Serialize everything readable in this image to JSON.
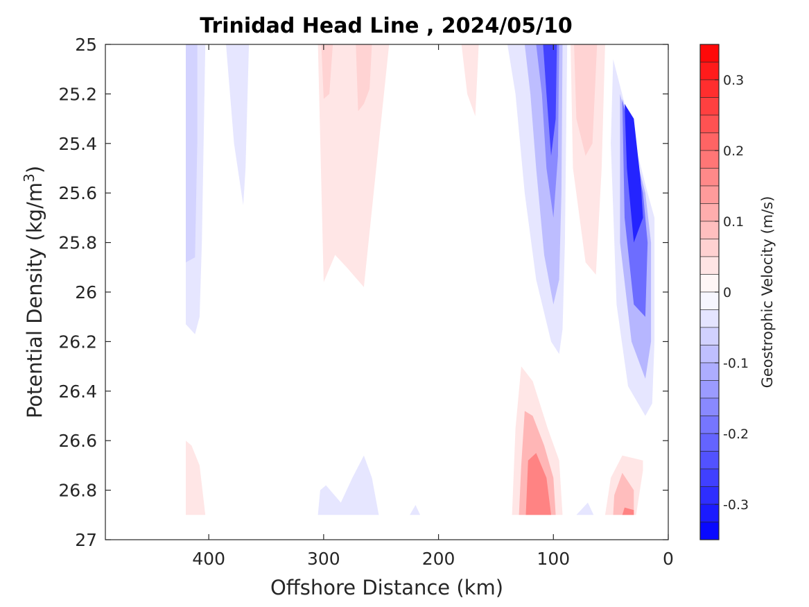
{
  "chart_data": {
    "type": "contour",
    "title": "Trinidad Head Line , 2024/05/10",
    "xlabel": "Offshore Distance (km)",
    "ylabel_main": "Potential Density (kg/m",
    "ylabel_sup": "3",
    "ylabel_close": ")",
    "x_reversed": true,
    "xlim": [
      490,
      0
    ],
    "ylim": [
      25,
      27
    ],
    "y_reversed": true,
    "x_ticks": [
      400,
      300,
      200,
      100,
      0
    ],
    "x_tick_labels": [
      "400",
      "300",
      "200",
      "100",
      "0"
    ],
    "y_ticks": [
      25,
      25.2,
      25.4,
      25.6,
      25.8,
      26,
      26.2,
      26.4,
      26.6,
      26.8,
      27
    ],
    "y_tick_labels": [
      "25",
      "25.2",
      "25.4",
      "25.6",
      "25.8",
      "26",
      "26.2",
      "26.4",
      "26.6",
      "26.8",
      "27"
    ],
    "colorbar": {
      "label": "Geostrophic Velocity (m/s)",
      "clim": [
        -0.35,
        0.35
      ],
      "levels_step": 0.025,
      "ticks": [
        0.3,
        0.2,
        0.1,
        0,
        -0.1,
        -0.2,
        -0.3
      ],
      "tick_labels": [
        "0.3",
        "0.2",
        "0.1",
        "0",
        "-0.1",
        "-0.2",
        "-0.3"
      ],
      "color_positive": "#ff0000",
      "color_negative": "#0000ff",
      "color_zero": "#ffffff"
    },
    "regions": [
      {
        "name": "offshore-negative-band-420km",
        "value": -0.035,
        "points": [
          [
            420,
            25
          ],
          [
            403,
            25
          ],
          [
            406,
            25.8
          ],
          [
            408,
            26.1
          ],
          [
            412,
            26.17
          ],
          [
            420,
            26.13
          ]
        ]
      },
      {
        "name": "offshore-negative-core-420km",
        "value": -0.06,
        "points": [
          [
            420,
            25
          ],
          [
            410,
            25
          ],
          [
            410,
            25.4
          ],
          [
            412,
            25.86
          ],
          [
            420,
            25.88
          ]
        ]
      },
      {
        "name": "offshore-negative-streak-375km",
        "value": -0.035,
        "points": [
          [
            385,
            25
          ],
          [
            365,
            25
          ],
          [
            368,
            25.5
          ],
          [
            370,
            25.65
          ],
          [
            378,
            25.4
          ]
        ]
      },
      {
        "name": "negative-band-285km",
        "value": -0.035,
        "points": [
          [
            305,
            26.9
          ],
          [
            252,
            26.9
          ],
          [
            258,
            26.75
          ],
          [
            265,
            26.66
          ],
          [
            275,
            26.75
          ],
          [
            285,
            26.85
          ],
          [
            298,
            26.78
          ],
          [
            303,
            26.8
          ]
        ]
      },
      {
        "name": "negative-speck-220km",
        "value": -0.035,
        "points": [
          [
            225,
            26.9
          ],
          [
            216,
            26.9
          ],
          [
            220,
            26.86
          ]
        ]
      },
      {
        "name": "positive-band-280km",
        "value": 0.035,
        "points": [
          [
            305,
            25
          ],
          [
            243,
            25
          ],
          [
            252,
            25.4
          ],
          [
            265,
            25.98
          ],
          [
            280,
            25.9
          ],
          [
            290,
            25.85
          ],
          [
            300,
            25.96
          ]
        ]
      },
      {
        "name": "positive-core-300km",
        "value": 0.06,
        "points": [
          [
            302,
            25
          ],
          [
            292,
            25
          ],
          [
            295,
            25.2
          ],
          [
            300,
            25.22
          ]
        ]
      },
      {
        "name": "positive-core-270km",
        "value": 0.06,
        "points": [
          [
            272,
            25
          ],
          [
            258,
            25
          ],
          [
            260,
            25.18
          ],
          [
            265,
            25.24
          ],
          [
            270,
            25.27
          ]
        ]
      },
      {
        "name": "positive-streak-170km",
        "value": 0.035,
        "points": [
          [
            180,
            25
          ],
          [
            165,
            25
          ],
          [
            168,
            25.29
          ],
          [
            175,
            25.2
          ]
        ]
      },
      {
        "name": "nearshore-negative-band-105km",
        "value": -0.035,
        "points": [
          [
            140,
            25
          ],
          [
            88,
            25
          ],
          [
            90,
            25.8
          ],
          [
            92,
            26.15
          ],
          [
            95,
            26.25
          ],
          [
            102,
            26.2
          ],
          [
            115,
            25.95
          ],
          [
            125,
            25.6
          ],
          [
            133,
            25.2
          ]
        ]
      },
      {
        "name": "nearshore-negative-mid-105km",
        "value": -0.09,
        "points": [
          [
            125,
            25
          ],
          [
            92,
            25
          ],
          [
            93,
            25.6
          ],
          [
            95,
            25.95
          ],
          [
            100,
            26.05
          ],
          [
            108,
            25.85
          ],
          [
            115,
            25.5
          ],
          [
            120,
            25.2
          ]
        ]
      },
      {
        "name": "nearshore-negative-strong-105km",
        "value": -0.16,
        "points": [
          [
            115,
            25
          ],
          [
            95,
            25
          ],
          [
            96,
            25.45
          ],
          [
            100,
            25.7
          ],
          [
            106,
            25.5
          ],
          [
            110,
            25.2
          ]
        ]
      },
      {
        "name": "nearshore-negative-core-105km",
        "value": -0.26,
        "points": [
          [
            109,
            25
          ],
          [
            97,
            25
          ],
          [
            98,
            25.3
          ],
          [
            102,
            25.45
          ],
          [
            106,
            25.2
          ]
        ]
      },
      {
        "name": "positive-band-70km",
        "value": 0.035,
        "points": [
          [
            85,
            25
          ],
          [
            55,
            25
          ],
          [
            58,
            25.5
          ],
          [
            63,
            25.93
          ],
          [
            72,
            25.88
          ],
          [
            83,
            25.5
          ]
        ]
      },
      {
        "name": "positive-core-70km",
        "value": 0.06,
        "points": [
          [
            82,
            25
          ],
          [
            62,
            25
          ],
          [
            66,
            25.4
          ],
          [
            72,
            25.45
          ],
          [
            80,
            25.3
          ]
        ]
      },
      {
        "name": "nearshore-negative-band-35km",
        "value": -0.035,
        "points": [
          [
            48,
            25.06
          ],
          [
            18,
            25.6
          ],
          [
            12,
            25.7
          ],
          [
            12,
            26.2
          ],
          [
            14,
            26.45
          ],
          [
            20,
            26.5
          ],
          [
            35,
            26.38
          ],
          [
            45,
            26.05
          ],
          [
            50,
            25.4
          ]
        ]
      },
      {
        "name": "nearshore-negative-mid-35km",
        "value": -0.1,
        "points": [
          [
            42,
            25.2
          ],
          [
            20,
            25.6
          ],
          [
            15,
            25.8
          ],
          [
            15,
            26.2
          ],
          [
            20,
            26.35
          ],
          [
            32,
            26.2
          ],
          [
            42,
            25.8
          ]
        ]
      },
      {
        "name": "nearshore-negative-strong-35km",
        "value": -0.2,
        "points": [
          [
            40,
            25.22
          ],
          [
            22,
            25.6
          ],
          [
            18,
            25.8
          ],
          [
            20,
            26.1
          ],
          [
            30,
            26.05
          ],
          [
            38,
            25.7
          ]
        ]
      },
      {
        "name": "nearshore-negative-core-35km",
        "value": -0.3,
        "points": [
          [
            38,
            25.24
          ],
          [
            30,
            25.3
          ],
          [
            24,
            25.55
          ],
          [
            22,
            25.7
          ],
          [
            30,
            25.8
          ],
          [
            36,
            25.5
          ]
        ]
      },
      {
        "name": "positive-bottom-420km",
        "value": 0.035,
        "points": [
          [
            420,
            26.6
          ],
          [
            420,
            26.9
          ],
          [
            403,
            26.9
          ],
          [
            408,
            26.7
          ],
          [
            415,
            26.62
          ]
        ]
      },
      {
        "name": "positive-bottom-band-115km",
        "value": 0.035,
        "points": [
          [
            136,
            26.9
          ],
          [
            92,
            26.9
          ],
          [
            95,
            26.68
          ],
          [
            105,
            26.55
          ],
          [
            118,
            26.36
          ],
          [
            128,
            26.3
          ],
          [
            133,
            26.55
          ]
        ]
      },
      {
        "name": "positive-bottom-mid-115km",
        "value": 0.1,
        "points": [
          [
            130,
            26.9
          ],
          [
            98,
            26.9
          ],
          [
            100,
            26.75
          ],
          [
            108,
            26.62
          ],
          [
            118,
            26.5
          ],
          [
            125,
            26.48
          ],
          [
            128,
            26.7
          ]
        ]
      },
      {
        "name": "positive-bottom-core-115km",
        "value": 0.17,
        "points": [
          [
            124,
            26.9
          ],
          [
            102,
            26.9
          ],
          [
            106,
            26.75
          ],
          [
            115,
            26.65
          ],
          [
            122,
            26.68
          ]
        ]
      },
      {
        "name": "negative-speck-75km",
        "value": -0.035,
        "points": [
          [
            80,
            26.9
          ],
          [
            65,
            26.9
          ],
          [
            70,
            26.85
          ]
        ]
      },
      {
        "name": "positive-bottom-band-40km",
        "value": 0.035,
        "points": [
          [
            55,
            26.9
          ],
          [
            28,
            26.9
          ],
          [
            22,
            26.72
          ],
          [
            22,
            26.68
          ],
          [
            40,
            26.66
          ],
          [
            50,
            26.75
          ]
        ]
      },
      {
        "name": "positive-bottom-core-40km",
        "value": 0.09,
        "points": [
          [
            48,
            26.9
          ],
          [
            30,
            26.9
          ],
          [
            30,
            26.8
          ],
          [
            40,
            26.73
          ],
          [
            47,
            26.82
          ]
        ]
      },
      {
        "name": "positive-bottom-speck-30km",
        "value": 0.17,
        "points": [
          [
            40,
            26.9
          ],
          [
            30,
            26.9
          ],
          [
            30,
            26.88
          ],
          [
            38,
            26.87
          ]
        ]
      }
    ]
  }
}
